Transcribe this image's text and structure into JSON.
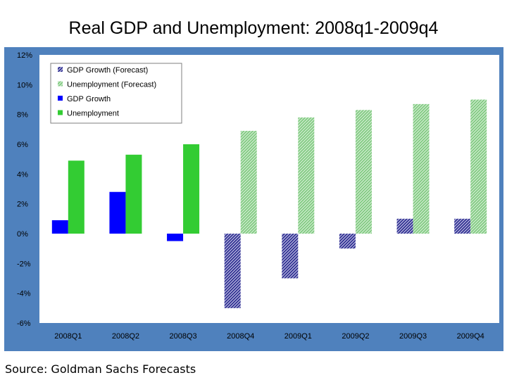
{
  "title": "Real GDP and Unemployment: 2008q1-2009q4",
  "source": "Source: Goldman Sachs Forecasts",
  "colors": {
    "frame": "#4f81bd",
    "plot_bg": "#ffffff",
    "gdp": "#0000ff",
    "unemployment": "#33cc33",
    "gdp_forecast": "#2b2b8f",
    "unemployment_forecast": "#7fc97f"
  },
  "chart_data": {
    "type": "bar",
    "title": "Real GDP and Unemployment: 2008q1-2009q4",
    "categories": [
      "2008Q1",
      "2008Q2",
      "2008Q3",
      "2008Q4",
      "2009Q1",
      "2009Q2",
      "2009Q3",
      "2009Q4"
    ],
    "series": [
      {
        "name": "GDP Growth (Forecast)",
        "values": [
          null,
          null,
          null,
          -5.0,
          -3.0,
          -1.0,
          1.0,
          1.0
        ],
        "pattern": "hatched",
        "color": "#2b2b8f"
      },
      {
        "name": "Unemployment (Forecast)",
        "values": [
          null,
          null,
          null,
          6.9,
          7.8,
          8.3,
          8.7,
          9.0
        ],
        "pattern": "hatched",
        "color": "#7fc97f"
      },
      {
        "name": "GDP Growth",
        "values": [
          0.9,
          2.8,
          -0.5,
          null,
          null,
          null,
          null,
          null
        ],
        "pattern": "solid",
        "color": "#0000ff"
      },
      {
        "name": "Unemployment",
        "values": [
          4.9,
          5.3,
          6.0,
          null,
          null,
          null,
          null,
          null
        ],
        "pattern": "solid",
        "color": "#33cc33"
      }
    ],
    "ylim": [
      -6,
      12
    ],
    "yticks": [
      12,
      10,
      8,
      6,
      4,
      2,
      0,
      -2,
      -4,
      -6
    ],
    "ytick_labels": [
      "12%",
      "10%",
      "8%",
      "6%",
      "4%",
      "2%",
      "0%",
      "-2%",
      "-4%",
      "-6%"
    ],
    "xlabel": "",
    "ylabel": "",
    "grid": false,
    "legend_position": "top-left"
  }
}
